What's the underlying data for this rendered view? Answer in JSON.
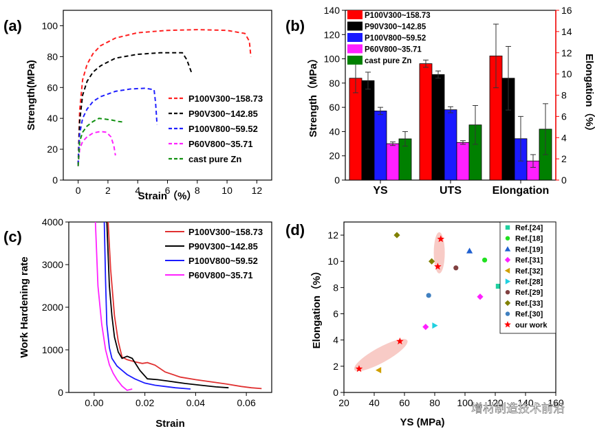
{
  "watermark": "增材制造技术前沿",
  "chart_data": [
    {
      "panel": "(a)",
      "type": "line",
      "xlabel": "Strain（%）",
      "ylabel": "Strength(MPa)",
      "xlim": [
        -1,
        13
      ],
      "ylim": [
        0,
        110
      ],
      "xticks": [
        0,
        2,
        4,
        6,
        8,
        10,
        12
      ],
      "yticks": [
        0,
        20,
        40,
        60,
        80,
        100
      ],
      "series": [
        {
          "name": "P100V300~158.73",
          "color": "#ff2020",
          "x": [
            0,
            0.1,
            0.3,
            0.6,
            1.0,
            1.5,
            2.5,
            4,
            6,
            8,
            10,
            11.2,
            11.5,
            11.6
          ],
          "y": [
            10,
            45,
            65,
            75,
            82,
            87,
            92,
            95.5,
            97,
            97.5,
            97,
            95,
            90,
            80
          ]
        },
        {
          "name": "P90V300~142.85",
          "color": "#000000",
          "x": [
            0,
            0.1,
            0.3,
            0.6,
            1.0,
            1.5,
            2.5,
            4,
            5.5,
            7,
            7.3,
            7.6
          ],
          "y": [
            10,
            38,
            55,
            64,
            70,
            74,
            79,
            81.5,
            82.5,
            82.5,
            78,
            70
          ]
        },
        {
          "name": "P100V800~59.52",
          "color": "#2020ff",
          "x": [
            0,
            0.1,
            0.3,
            0.6,
            1.0,
            1.5,
            2.5,
            3.5,
            4.5,
            5.1,
            5.2,
            5.3
          ],
          "y": [
            10,
            30,
            40,
            46,
            51,
            54,
            57.5,
            59,
            59.5,
            58.5,
            50,
            36
          ]
        },
        {
          "name": "P60V800~35.71",
          "color": "#ff20ff",
          "x": [
            0,
            0.1,
            0.3,
            0.6,
            1.0,
            1.5,
            1.9,
            2.2,
            2.4,
            2.5
          ],
          "y": [
            9,
            20,
            25,
            28,
            30.5,
            31.5,
            31,
            28,
            22,
            16
          ]
        },
        {
          "name": "cast pure Zn",
          "color": "#109010",
          "x": [
            0,
            0.1,
            0.3,
            0.6,
            1.0,
            1.4,
            1.8,
            2.2,
            2.7,
            3.1
          ],
          "y": [
            9,
            25,
            31,
            35,
            38,
            40,
            39.5,
            39,
            38,
            37.5
          ]
        }
      ]
    },
    {
      "panel": "(b)",
      "type": "bar",
      "categories": [
        "YS",
        "UTS",
        "Elongation"
      ],
      "ylabel": "Strength（MPa）",
      "ylabel_right": "Elongation（%）",
      "ylim": [
        0,
        140
      ],
      "ylim_right": [
        0,
        16
      ],
      "yticks": [
        0,
        20,
        40,
        60,
        80,
        100,
        120,
        140
      ],
      "yticks_right": [
        0,
        2,
        4,
        6,
        8,
        10,
        12,
        14,
        16
      ],
      "series": [
        {
          "name": "P100V300~158.73",
          "color": "#ff0000",
          "values": [
            84,
            96,
            11.7
          ],
          "errors": [
            12,
            3,
            3
          ]
        },
        {
          "name": "P90V300~142.85",
          "color": "#000000",
          "values": [
            82,
            87,
            9.6
          ],
          "errors": [
            7,
            3,
            3
          ]
        },
        {
          "name": "P100V800~59.52",
          "color": "#1a1aff",
          "values": [
            57,
            58,
            3.9
          ],
          "errors": [
            3,
            2.5,
            2.1
          ]
        },
        {
          "name": "P60V800~35.71",
          "color": "#ff20ff",
          "values": [
            30,
            31,
            1.8
          ],
          "errors": [
            1.5,
            1.5,
            0.6
          ]
        },
        {
          "name": "cast pure Zn",
          "color": "#008000",
          "values": [
            34,
            45.5,
            4.8
          ],
          "errors": [
            6,
            16,
            2.4
          ]
        }
      ]
    },
    {
      "panel": "(c)",
      "type": "line",
      "xlabel": "Strain",
      "ylabel": "Work Hardening rate",
      "xlim": [
        -0.01,
        0.07
      ],
      "ylim": [
        0,
        4000
      ],
      "xticks": [
        0.0,
        0.02,
        0.04,
        0.06
      ],
      "xtick_labels": [
        "0.00",
        "0.02",
        "0.04",
        "0.06"
      ],
      "yticks": [
        0,
        1000,
        2000,
        3000,
        4000
      ],
      "series": [
        {
          "name": "P100V300~158.73",
          "color": "#e03030",
          "x": [
            0.0055,
            0.0065,
            0.008,
            0.0095,
            0.011,
            0.013,
            0.016,
            0.019,
            0.021,
            0.024,
            0.028,
            0.034,
            0.04,
            0.046,
            0.052,
            0.058,
            0.062,
            0.066
          ],
          "y": [
            4000,
            2900,
            1800,
            1200,
            830,
            770,
            720,
            680,
            700,
            640,
            480,
            360,
            300,
            250,
            200,
            140,
            110,
            90
          ]
        },
        {
          "name": "P90V300~142.85",
          "color": "#000000",
          "x": [
            0.005,
            0.006,
            0.007,
            0.008,
            0.0095,
            0.011,
            0.013,
            0.015,
            0.018,
            0.021,
            0.025,
            0.03,
            0.036,
            0.042,
            0.048,
            0.053
          ],
          "y": [
            4000,
            2500,
            1800,
            1300,
            950,
            800,
            850,
            800,
            520,
            320,
            300,
            260,
            210,
            170,
            130,
            110
          ]
        },
        {
          "name": "P100V800~59.52",
          "color": "#1a1aff",
          "x": [
            0.004,
            0.0045,
            0.005,
            0.006,
            0.007,
            0.009,
            0.011,
            0.013,
            0.016,
            0.02,
            0.024,
            0.028,
            0.032,
            0.036,
            0.038
          ],
          "y": [
            4000,
            2600,
            1600,
            1050,
            800,
            620,
            520,
            420,
            320,
            220,
            170,
            140,
            110,
            90,
            80
          ]
        },
        {
          "name": "P60V800~35.71",
          "color": "#ff20ff",
          "x": [
            0.0005,
            0.0015,
            0.003,
            0.0045,
            0.006,
            0.0075,
            0.009,
            0.011,
            0.013,
            0.015
          ],
          "y": [
            4000,
            2500,
            1600,
            1000,
            650,
            450,
            300,
            150,
            50,
            80
          ]
        }
      ]
    },
    {
      "panel": "(d)",
      "type": "scatter",
      "xlabel": "YS (MPa)",
      "ylabel": "Elongation（%）",
      "xlim": [
        20,
        160
      ],
      "ylim": [
        0,
        13
      ],
      "xticks": [
        20,
        40,
        60,
        80,
        100,
        120,
        140,
        160
      ],
      "yticks": [
        0,
        2,
        4,
        6,
        8,
        10,
        12
      ],
      "series": [
        {
          "name": "Ref.[24]",
          "color": "#20d0a0",
          "marker": "square",
          "x": [
            122
          ],
          "y": [
            8.1
          ]
        },
        {
          "name": "Ref.[18]",
          "color": "#20e020",
          "marker": "circle",
          "x": [
            113
          ],
          "y": [
            10.1
          ]
        },
        {
          "name": "Ref.[19]",
          "color": "#2060d0",
          "marker": "triangle-up",
          "x": [
            103
          ],
          "y": [
            10.8
          ]
        },
        {
          "name": "Ref.[31]",
          "color": "#ff20ff",
          "marker": "diamond",
          "x": [
            74,
            110
          ],
          "y": [
            5.0,
            7.3
          ]
        },
        {
          "name": "Ref.[32]",
          "color": "#d0a000",
          "marker": "triangle-left",
          "x": [
            43
          ],
          "y": [
            1.7
          ]
        },
        {
          "name": "Ref.[28]",
          "color": "#20d0e0",
          "marker": "triangle-right",
          "x": [
            80
          ],
          "y": [
            5.1
          ]
        },
        {
          "name": "Ref.[29]",
          "color": "#804040",
          "marker": "circle",
          "x": [
            94
          ],
          "y": [
            9.5
          ]
        },
        {
          "name": "Ref.[33]",
          "color": "#808000",
          "marker": "diamond",
          "x": [
            55,
            78
          ],
          "y": [
            12.0,
            10.0
          ]
        },
        {
          "name": "Ref.[30]",
          "color": "#4080c0",
          "marker": "circle",
          "x": [
            76
          ],
          "y": [
            7.4
          ]
        },
        {
          "name": "our work",
          "color": "#ff0000",
          "marker": "star",
          "x": [
            30,
            57,
            82,
            84
          ],
          "y": [
            1.8,
            3.9,
            9.6,
            11.7
          ]
        }
      ]
    }
  ]
}
